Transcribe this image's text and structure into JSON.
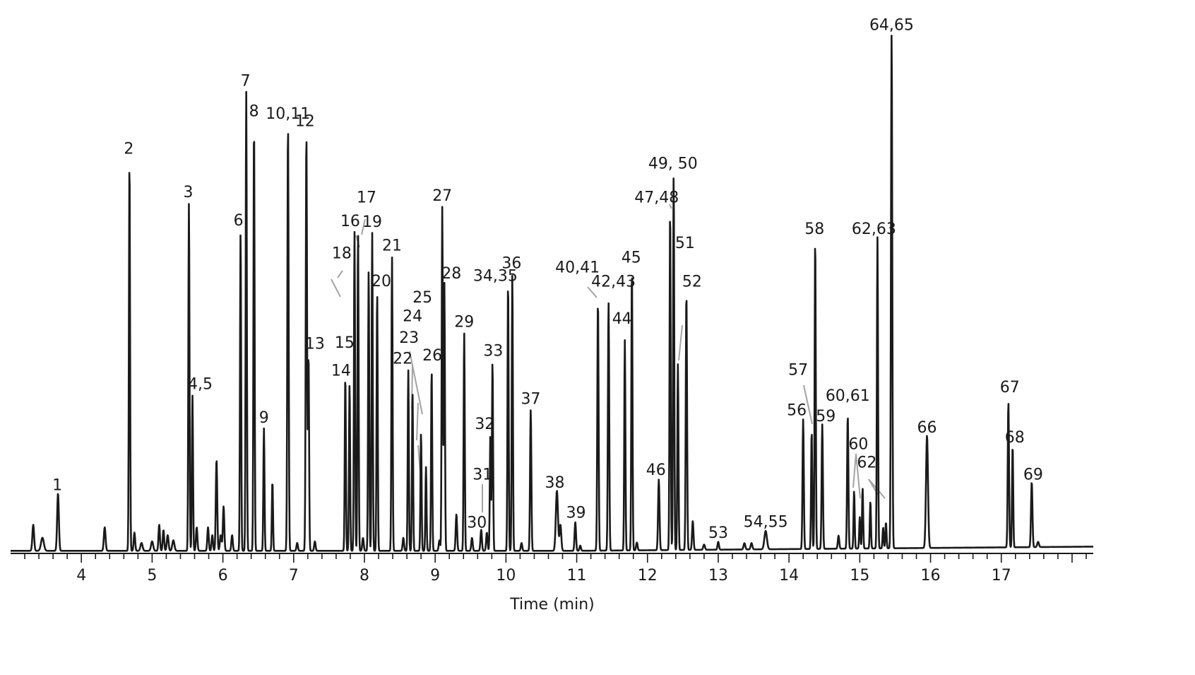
{
  "chart_data": {
    "type": "line",
    "title": "",
    "xlabel": "Time (min)",
    "ylabel": "",
    "xlim": [
      3.0,
      18.3
    ],
    "ylim": [
      0,
      1000
    ],
    "x_ticks": [
      4,
      5,
      6,
      7,
      8,
      9,
      10,
      11,
      12,
      13,
      14,
      15,
      16,
      17
    ],
    "grid": false,
    "baseline": 5,
    "peaks": [
      {
        "x": 3.32,
        "h": 50,
        "w": 0.012
      },
      {
        "x": 3.45,
        "h": 25,
        "w": 0.02
      },
      {
        "x": 3.67,
        "h": 110,
        "w": 0.012
      },
      {
        "x": 4.33,
        "h": 45,
        "w": 0.012
      },
      {
        "x": 4.68,
        "h": 748,
        "w": 0.008
      },
      {
        "x": 4.75,
        "h": 35,
        "w": 0.01
      },
      {
        "x": 4.85,
        "h": 15,
        "w": 0.015
      },
      {
        "x": 5.0,
        "h": 18,
        "w": 0.015
      },
      {
        "x": 5.1,
        "h": 50,
        "w": 0.01
      },
      {
        "x": 5.16,
        "h": 40,
        "w": 0.01
      },
      {
        "x": 5.22,
        "h": 30,
        "w": 0.012
      },
      {
        "x": 5.3,
        "h": 20,
        "w": 0.015
      },
      {
        "x": 5.52,
        "h": 665,
        "w": 0.008
      },
      {
        "x": 5.57,
        "h": 297,
        "w": 0.008
      },
      {
        "x": 5.63,
        "h": 45,
        "w": 0.01
      },
      {
        "x": 5.79,
        "h": 45,
        "w": 0.01
      },
      {
        "x": 5.85,
        "h": 30,
        "w": 0.01
      },
      {
        "x": 5.91,
        "h": 175,
        "w": 0.01
      },
      {
        "x": 5.97,
        "h": 30,
        "w": 0.012
      },
      {
        "x": 6.01,
        "h": 85,
        "w": 0.01
      },
      {
        "x": 6.13,
        "h": 30,
        "w": 0.01
      },
      {
        "x": 6.25,
        "h": 611,
        "w": 0.008
      },
      {
        "x": 6.33,
        "h": 878,
        "w": 0.008
      },
      {
        "x": 6.44,
        "h": 821,
        "w": 0.008
      },
      {
        "x": 6.58,
        "h": 234,
        "w": 0.008
      },
      {
        "x": 6.7,
        "h": 133,
        "w": 0.008
      },
      {
        "x": 6.92,
        "h": 815,
        "w": 0.009
      },
      {
        "x": 7.05,
        "h": 15,
        "w": 0.01
      },
      {
        "x": 7.18,
        "h": 800,
        "w": 0.009
      },
      {
        "x": 7.21,
        "h": 375,
        "w": 0.008
      },
      {
        "x": 7.3,
        "h": 18,
        "w": 0.01
      },
      {
        "x": 7.73,
        "h": 335,
        "w": 0.008
      },
      {
        "x": 7.79,
        "h": 318,
        "w": 0.008
      },
      {
        "x": 7.86,
        "h": 610,
        "w": 0.008
      },
      {
        "x": 7.91,
        "h": 610,
        "w": 0.008
      },
      {
        "x": 7.98,
        "h": 25,
        "w": 0.01
      },
      {
        "x": 8.06,
        "h": 535,
        "w": 0.008
      },
      {
        "x": 8.11,
        "h": 608,
        "w": 0.008
      },
      {
        "x": 8.18,
        "h": 495,
        "w": 0.008
      },
      {
        "x": 8.39,
        "h": 563,
        "w": 0.008
      },
      {
        "x": 8.55,
        "h": 25,
        "w": 0.01
      },
      {
        "x": 8.62,
        "h": 345,
        "w": 0.008
      },
      {
        "x": 8.68,
        "h": 303,
        "w": 0.008
      },
      {
        "x": 8.8,
        "h": 225,
        "w": 0.008
      },
      {
        "x": 8.87,
        "h": 160,
        "w": 0.008
      },
      {
        "x": 8.95,
        "h": 345,
        "w": 0.008
      },
      {
        "x": 9.06,
        "h": 20,
        "w": 0.01
      },
      {
        "x": 9.1,
        "h": 658,
        "w": 0.008
      },
      {
        "x": 9.13,
        "h": 512,
        "w": 0.008
      },
      {
        "x": 9.3,
        "h": 70,
        "w": 0.01
      },
      {
        "x": 9.41,
        "h": 417,
        "w": 0.008
      },
      {
        "x": 9.52,
        "h": 25,
        "w": 0.01
      },
      {
        "x": 9.65,
        "h": 40,
        "w": 0.01
      },
      {
        "x": 9.73,
        "h": 35,
        "w": 0.01
      },
      {
        "x": 9.78,
        "h": 225,
        "w": 0.008
      },
      {
        "x": 9.81,
        "h": 362,
        "w": 0.008
      },
      {
        "x": 10.03,
        "h": 515,
        "w": 0.008
      },
      {
        "x": 10.09,
        "h": 530,
        "w": 0.008
      },
      {
        "x": 10.22,
        "h": 15,
        "w": 0.01
      },
      {
        "x": 10.35,
        "h": 270,
        "w": 0.009
      },
      {
        "x": 10.72,
        "h": 115,
        "w": 0.015
      },
      {
        "x": 10.77,
        "h": 50,
        "w": 0.012
      },
      {
        "x": 10.98,
        "h": 55,
        "w": 0.01
      },
      {
        "x": 11.05,
        "h": 10,
        "w": 0.01
      },
      {
        "x": 11.3,
        "h": 478,
        "w": 0.009
      },
      {
        "x": 11.45,
        "h": 474,
        "w": 0.009
      },
      {
        "x": 11.68,
        "h": 402,
        "w": 0.008
      },
      {
        "x": 11.78,
        "h": 540,
        "w": 0.008
      },
      {
        "x": 11.85,
        "h": 15,
        "w": 0.01
      },
      {
        "x": 12.16,
        "h": 135,
        "w": 0.01
      },
      {
        "x": 12.32,
        "h": 654,
        "w": 0.008
      },
      {
        "x": 12.37,
        "h": 720,
        "w": 0.008
      },
      {
        "x": 12.43,
        "h": 355,
        "w": 0.008
      },
      {
        "x": 12.55,
        "h": 492,
        "w": 0.009
      },
      {
        "x": 12.64,
        "h": 55,
        "w": 0.01
      },
      {
        "x": 12.8,
        "h": 10,
        "w": 0.012
      },
      {
        "x": 13.0,
        "h": 15,
        "w": 0.01
      },
      {
        "x": 13.37,
        "h": 12,
        "w": 0.012
      },
      {
        "x": 13.47,
        "h": 12,
        "w": 0.012
      },
      {
        "x": 13.67,
        "h": 35,
        "w": 0.018
      },
      {
        "x": 14.2,
        "h": 248,
        "w": 0.009
      },
      {
        "x": 14.32,
        "h": 225,
        "w": 0.008
      },
      {
        "x": 14.37,
        "h": 594,
        "w": 0.008
      },
      {
        "x": 14.47,
        "h": 238,
        "w": 0.009
      },
      {
        "x": 14.7,
        "h": 25,
        "w": 0.01
      },
      {
        "x": 14.83,
        "h": 255,
        "w": 0.009
      },
      {
        "x": 14.92,
        "h": 110,
        "w": 0.008
      },
      {
        "x": 15.0,
        "h": 60,
        "w": 0.008
      },
      {
        "x": 15.04,
        "h": 115,
        "w": 0.008
      },
      {
        "x": 15.15,
        "h": 90,
        "w": 0.008
      },
      {
        "x": 15.25,
        "h": 595,
        "w": 0.008
      },
      {
        "x": 15.33,
        "h": 40,
        "w": 0.008
      },
      {
        "x": 15.37,
        "h": 50,
        "w": 0.008
      },
      {
        "x": 15.45,
        "h": 985,
        "w": 0.009
      },
      {
        "x": 15.95,
        "h": 215,
        "w": 0.014
      },
      {
        "x": 17.1,
        "h": 278,
        "w": 0.009
      },
      {
        "x": 17.16,
        "h": 195,
        "w": 0.008
      },
      {
        "x": 17.43,
        "h": 125,
        "w": 0.01
      },
      {
        "x": 17.52,
        "h": 10,
        "w": 0.012
      }
    ],
    "annotations": [
      {
        "text": "1",
        "x": 3.66,
        "y": 121
      },
      {
        "text": "2",
        "x": 4.67,
        "y": 764
      },
      {
        "text": "3",
        "x": 5.51,
        "y": 681
      },
      {
        "text": "4,5",
        "x": 5.68,
        "y": 314
      },
      {
        "text": "6",
        "x": 6.22,
        "y": 627
      },
      {
        "text": "7",
        "x": 6.32,
        "y": 894
      },
      {
        "text": "8",
        "x": 6.44,
        "y": 836
      },
      {
        "text": "9",
        "x": 6.58,
        "y": 250
      },
      {
        "text": "10,11",
        "x": 6.92,
        "y": 831
      },
      {
        "text": "12",
        "x": 7.16,
        "y": 817
      },
      {
        "text": "13",
        "x": 7.3,
        "y": 391
      },
      {
        "text": "14",
        "x": 7.67,
        "y": 340
      },
      {
        "text": "15",
        "x": 7.72,
        "y": 393
      },
      {
        "text": "16",
        "x": 7.8,
        "y": 626
      },
      {
        "text": "17",
        "x": 8.03,
        "y": 671
      },
      {
        "text": "18",
        "x": 7.68,
        "y": 564
      },
      {
        "text": "19",
        "x": 8.11,
        "y": 624
      },
      {
        "text": "20",
        "x": 8.24,
        "y": 511
      },
      {
        "text": "21",
        "x": 8.39,
        "y": 579
      },
      {
        "text": "22",
        "x": 8.54,
        "y": 363
      },
      {
        "text": "23",
        "x": 8.63,
        "y": 403
      },
      {
        "text": "24",
        "x": 8.68,
        "y": 444
      },
      {
        "text": "25",
        "x": 8.82,
        "y": 480
      },
      {
        "text": "26",
        "x": 8.96,
        "y": 369
      },
      {
        "text": "27",
        "x": 9.1,
        "y": 674
      },
      {
        "text": "28",
        "x": 9.23,
        "y": 526
      },
      {
        "text": "29",
        "x": 9.41,
        "y": 433
      },
      {
        "text": "30",
        "x": 9.59,
        "y": 49
      },
      {
        "text": "31",
        "x": 9.67,
        "y": 141
      },
      {
        "text": "32",
        "x": 9.7,
        "y": 238
      },
      {
        "text": "33",
        "x": 9.82,
        "y": 378
      },
      {
        "text": "34,35",
        "x": 9.85,
        "y": 521
      },
      {
        "text": "36",
        "x": 10.08,
        "y": 545
      },
      {
        "text": "37",
        "x": 10.35,
        "y": 286
      },
      {
        "text": "38",
        "x": 10.69,
        "y": 126
      },
      {
        "text": "39",
        "x": 10.99,
        "y": 68
      },
      {
        "text": "40,41",
        "x": 11.01,
        "y": 537
      },
      {
        "text": "42,43",
        "x": 11.52,
        "y": 510
      },
      {
        "text": "44",
        "x": 11.64,
        "y": 439
      },
      {
        "text": "45",
        "x": 11.77,
        "y": 556
      },
      {
        "text": "46",
        "x": 12.12,
        "y": 150
      },
      {
        "text": "47,48",
        "x": 12.13,
        "y": 671
      },
      {
        "text": "49, 50",
        "x": 12.36,
        "y": 736
      },
      {
        "text": "51",
        "x": 12.53,
        "y": 584
      },
      {
        "text": "52",
        "x": 12.63,
        "y": 510
      },
      {
        "text": "53",
        "x": 13.0,
        "y": 30
      },
      {
        "text": "54,55",
        "x": 13.67,
        "y": 51
      },
      {
        "text": "56",
        "x": 14.11,
        "y": 264
      },
      {
        "text": "57",
        "x": 14.13,
        "y": 341
      },
      {
        "text": "58",
        "x": 14.36,
        "y": 611
      },
      {
        "text": "59",
        "x": 14.52,
        "y": 253
      },
      {
        "text": "60,61",
        "x": 14.83,
        "y": 292
      },
      {
        "text": "60",
        "x": 14.98,
        "y": 199
      },
      {
        "text": "62",
        "x": 15.1,
        "y": 164
      },
      {
        "text": "62,63",
        "x": 15.2,
        "y": 611
      },
      {
        "text": "64,65",
        "x": 15.45,
        "y": 1001
      },
      {
        "text": "66",
        "x": 15.95,
        "y": 231
      },
      {
        "text": "67",
        "x": 17.12,
        "y": 308
      },
      {
        "text": "68",
        "x": 17.19,
        "y": 212
      },
      {
        "text": "69",
        "x": 17.45,
        "y": 141
      }
    ]
  }
}
